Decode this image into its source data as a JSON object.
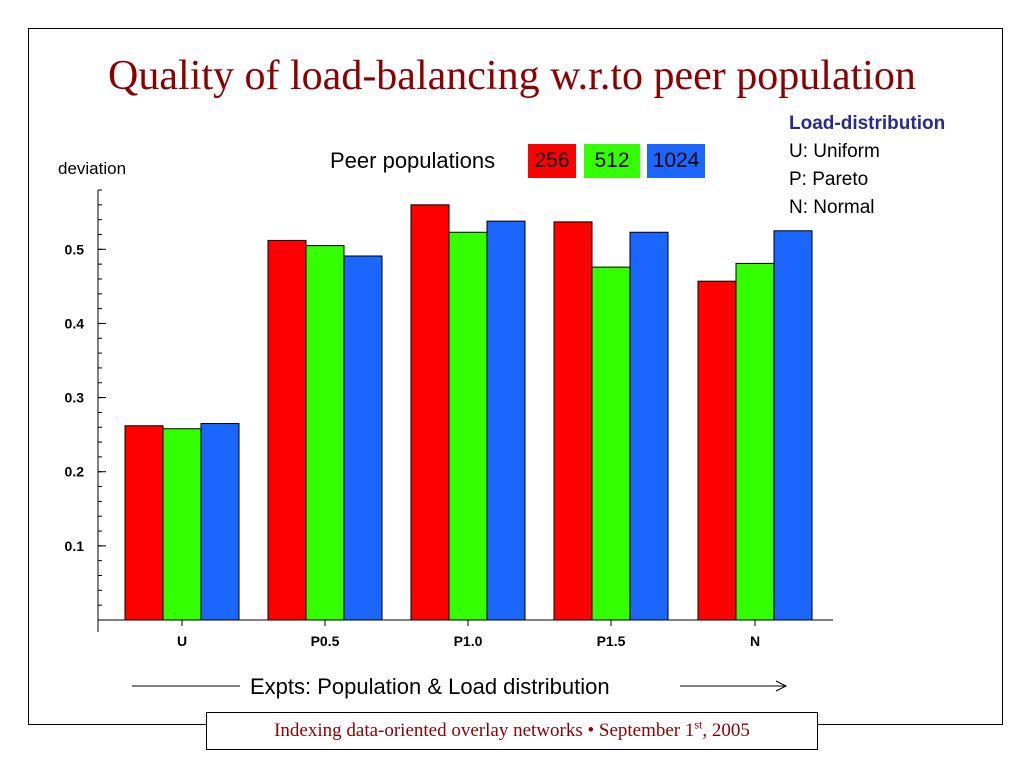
{
  "slide": {
    "title": "Quality of load-balancing w.r.to peer population",
    "footer": {
      "text_before": "Indexing data-oriented overlay networks • September 1",
      "superscript": "st",
      "text_after": ", 2005"
    }
  },
  "legend_panel": {
    "header": "Load-distribution",
    "items": [
      "U: Uniform",
      "P: Pareto",
      "N: Normal"
    ]
  },
  "peer_populations": {
    "label": "Peer populations"
  },
  "x_axis_caption": "Expts: Population & Load distribution",
  "colors": {
    "title": "#8b0000",
    "legend_header": "#2a2a8c",
    "series": [
      "#ff0000",
      "#33ff00",
      "#1a66ff"
    ]
  },
  "chart_data": {
    "type": "bar",
    "ylabel": "deviation",
    "xlabel": "",
    "ylim": [
      0,
      0.58
    ],
    "yticks": [
      0.1,
      0.2,
      0.3,
      0.4,
      0.5
    ],
    "ytick_labels": [
      "0.1",
      "0.2",
      "0.3",
      "0.4",
      "0.5"
    ],
    "categories": [
      "U",
      "P0.5",
      "P1.0",
      "P1.5",
      "N"
    ],
    "series": [
      {
        "name": "256",
        "color": "#ff0000",
        "values": [
          0.262,
          0.512,
          0.56,
          0.537,
          0.457
        ]
      },
      {
        "name": "512",
        "color": "#33ff00",
        "values": [
          0.258,
          0.505,
          0.523,
          0.476,
          0.481
        ]
      },
      {
        "name": "1024",
        "color": "#1a66ff",
        "values": [
          0.265,
          0.491,
          0.538,
          0.523,
          0.525
        ]
      }
    ],
    "legend_position": "top-center",
    "grid": false
  }
}
